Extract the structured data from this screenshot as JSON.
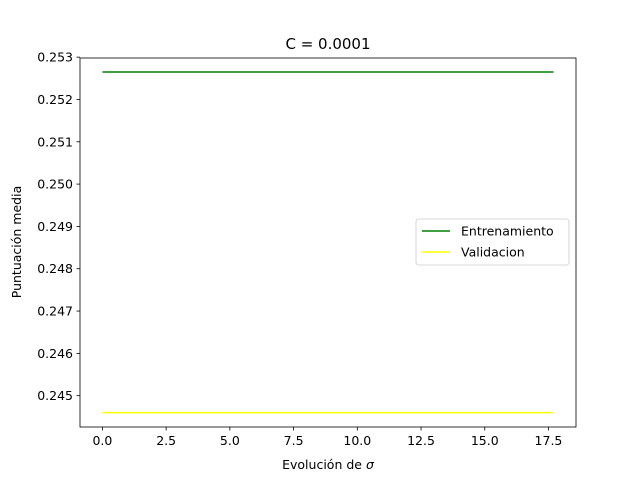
{
  "chart_data": {
    "type": "line",
    "title": "C = 0.0001",
    "xlabel": "Evolución de ",
    "xlabel_symbol": "σ",
    "ylabel": "Puntuación media",
    "xlim": [
      -0.88,
      18.58
    ],
    "ylim": [
      0.24426,
      0.25298
    ],
    "xticks": [
      0.0,
      2.5,
      5.0,
      7.5,
      10.0,
      12.5,
      15.0,
      17.5
    ],
    "xtick_labels": [
      "0.0",
      "2.5",
      "5.0",
      "7.5",
      "10.0",
      "12.5",
      "15.0",
      "17.5"
    ],
    "yticks": [
      0.245,
      0.246,
      0.247,
      0.248,
      0.249,
      0.25,
      0.251,
      0.252,
      0.253
    ],
    "ytick_labels": [
      "0.245",
      "0.246",
      "0.247",
      "0.248",
      "0.249",
      "0.250",
      "0.251",
      "0.252",
      "0.253"
    ],
    "grid": false,
    "legend_position": "center-right",
    "series": [
      {
        "name": "Entrenamiento",
        "color": "#008000",
        "x": [
          0,
          17.7
        ],
        "y": [
          0.25265,
          0.25265
        ]
      },
      {
        "name": "Validacion",
        "color": "#ffff00",
        "x": [
          0,
          17.7
        ],
        "y": [
          0.2446,
          0.2446
        ]
      }
    ]
  }
}
